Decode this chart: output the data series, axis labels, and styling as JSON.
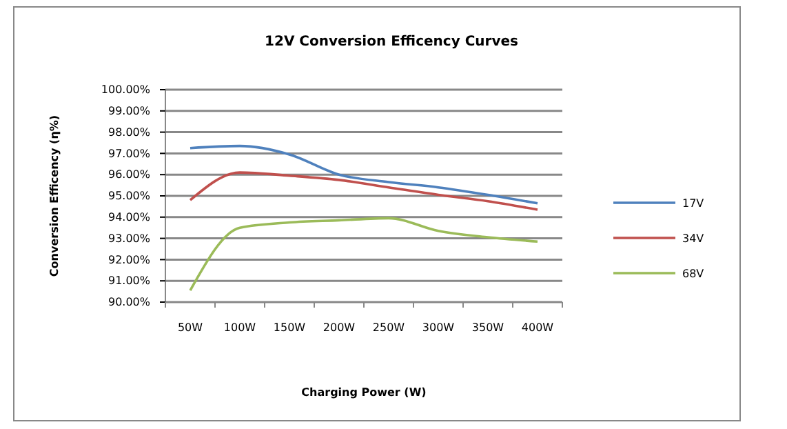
{
  "chart_data": {
    "type": "line",
    "title": "12V  Conversion Efficency Curves",
    "xlabel": "Charging  Power  (W)",
    "ylabel": "Conversion Efficency (η%)",
    "categories": [
      "50W",
      "100W",
      "150W",
      "200W",
      "250W",
      "300W",
      "350W",
      "400W"
    ],
    "series": [
      {
        "name": "17V",
        "color": "#4f81bd",
        "values": [
          97.25,
          97.35,
          96.95,
          96.0,
          95.65,
          95.4,
          95.05,
          94.65
        ]
      },
      {
        "name": "34V",
        "color": "#c0504d",
        "values": [
          94.8,
          96.1,
          95.95,
          95.75,
          95.4,
          95.05,
          94.75,
          94.35
        ]
      },
      {
        "name": "68V",
        "color": "#9bbb59",
        "values": [
          90.55,
          93.5,
          93.75,
          93.85,
          93.95,
          93.35,
          93.05,
          92.85
        ]
      }
    ],
    "ylim": [
      90,
      100
    ],
    "yticks": [
      {
        "value": 90,
        "label": "90.00%"
      },
      {
        "value": 91,
        "label": "91.00%"
      },
      {
        "value": 92,
        "label": "92.00%"
      },
      {
        "value": 93,
        "label": "93.00%"
      },
      {
        "value": 94,
        "label": "94.00%"
      },
      {
        "value": 95,
        "label": "95.00%"
      },
      {
        "value": 96,
        "label": "96.00%"
      },
      {
        "value": 97,
        "label": "97.00%"
      },
      {
        "value": 98,
        "label": "98.00%"
      },
      {
        "value": 99,
        "label": "99.00%"
      },
      {
        "value": 100,
        "label": "100.00%"
      }
    ],
    "grid": "y",
    "legend": "right",
    "marker": "none",
    "line_style": "solid"
  }
}
